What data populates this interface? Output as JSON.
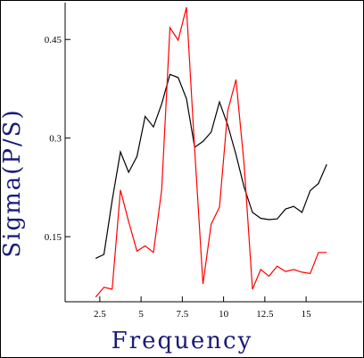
{
  "chart_data": {
    "type": "line",
    "xlabel": "Frequency",
    "ylabel": "Sigma(P/S)",
    "x": [
      2.25,
      2.75,
      3.25,
      3.75,
      4.25,
      4.75,
      5.25,
      5.75,
      6.25,
      6.75,
      7.25,
      7.75,
      8.25,
      8.75,
      9.25,
      9.75,
      10.25,
      10.75,
      11.25,
      11.75,
      12.25,
      12.75,
      13.25,
      13.75,
      14.25,
      14.75,
      15.25,
      15.75,
      16.25
    ],
    "series": [
      {
        "color": "#000000",
        "values": [
          0.117,
          0.123,
          0.205,
          0.279,
          0.248,
          0.272,
          0.333,
          0.317,
          0.352,
          0.397,
          0.392,
          0.36,
          0.286,
          0.295,
          0.309,
          0.355,
          0.32,
          0.275,
          0.225,
          0.187,
          0.178,
          0.176,
          0.177,
          0.192,
          0.196,
          0.187,
          0.22,
          0.231,
          0.26
        ]
      },
      {
        "color": "#ff0000",
        "values": [
          0.058,
          0.073,
          0.07,
          0.221,
          0.173,
          0.128,
          0.136,
          0.126,
          0.221,
          0.468,
          0.449,
          0.499,
          0.283,
          0.078,
          0.169,
          0.195,
          0.341,
          0.389,
          0.259,
          0.07,
          0.1,
          0.09,
          0.105,
          0.097,
          0.1,
          0.096,
          0.094,
          0.126,
          0.126
        ]
      }
    ],
    "xlim": [
      0.4,
      18.4
    ],
    "ylim": [
      0.051,
      0.506
    ],
    "xticks": [
      2.5,
      5,
      7.5,
      10,
      12.5,
      15
    ],
    "yticks": [
      0.15,
      0.3,
      0.45
    ]
  }
}
